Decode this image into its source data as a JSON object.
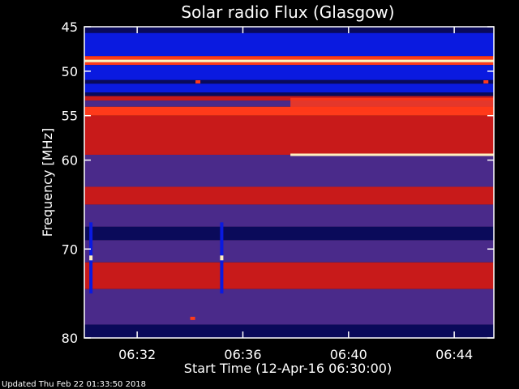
{
  "chart_data": {
    "type": "heatmap",
    "title": "Solar radio Flux (Glasgow)",
    "xlabel": "Start Time (12-Apr-16 06:30:00)",
    "ylabel": "Frequency [MHz]",
    "x_unit": "minutes after 06:30:00",
    "xlim": [
      0,
      15.5
    ],
    "ylim": [
      45,
      80
    ],
    "y_inverted": true,
    "x_ticks": [
      {
        "value": 2,
        "label": "06:32"
      },
      {
        "value": 6,
        "label": "06:36"
      },
      {
        "value": 10,
        "label": "06:40"
      },
      {
        "value": 14,
        "label": "06:44"
      }
    ],
    "y_ticks": [
      {
        "value": 45,
        "label": "45"
      },
      {
        "value": 50,
        "label": "50"
      },
      {
        "value": 55,
        "label": "55"
      },
      {
        "value": 60,
        "label": "60"
      },
      {
        "value": 70,
        "label": "70"
      },
      {
        "value": 80,
        "label": "80"
      }
    ],
    "colors": {
      "background": "#000000",
      "band_blue": "#0a1ae0",
      "band_dark_blue": "#0a0a5a",
      "band_purple": "#4a2a8a",
      "band_red": "#c81a1a",
      "band_bright_red": "#ff3a1a",
      "band_white": "#fff0c0",
      "border": "#ffffff"
    },
    "frequency_bands": [
      {
        "from": 45.0,
        "to": 45.7,
        "level": "dark_blue"
      },
      {
        "from": 45.7,
        "to": 48.3,
        "level": "blue"
      },
      {
        "from": 48.3,
        "to": 48.7,
        "level": "bright_red"
      },
      {
        "from": 48.7,
        "to": 49.0,
        "level": "white"
      },
      {
        "from": 49.0,
        "to": 49.3,
        "level": "bright_red"
      },
      {
        "from": 49.3,
        "to": 51.0,
        "level": "blue"
      },
      {
        "from": 51.0,
        "to": 51.4,
        "level": "dark_blue"
      },
      {
        "from": 51.4,
        "to": 52.4,
        "level": "blue"
      },
      {
        "from": 52.4,
        "to": 52.8,
        "level": "dark_blue"
      },
      {
        "from": 52.8,
        "to": 53.3,
        "level": "red"
      },
      {
        "from": 53.3,
        "to": 54.0,
        "level": "purple"
      },
      {
        "from": 54.0,
        "to": 55.0,
        "level": "bright_red"
      },
      {
        "from": 55.0,
        "to": 59.4,
        "level": "red"
      },
      {
        "from": 59.4,
        "to": 63.0,
        "level": "purple"
      },
      {
        "from": 63.0,
        "to": 65.0,
        "level": "red"
      },
      {
        "from": 65.0,
        "to": 67.5,
        "level": "purple"
      },
      {
        "from": 67.5,
        "to": 69.0,
        "level": "dark_blue"
      },
      {
        "from": 69.0,
        "to": 71.5,
        "level": "purple"
      },
      {
        "from": 71.5,
        "to": 74.5,
        "level": "red"
      },
      {
        "from": 74.5,
        "to": 78.5,
        "level": "purple"
      },
      {
        "from": 78.5,
        "to": 80.0,
        "level": "dark_blue"
      }
    ],
    "features": [
      {
        "kind": "bright_line",
        "freq": 59.4,
        "from_min": 7.8,
        "to_min": 15.5
      },
      {
        "kind": "bright_band",
        "freq_from": 53.0,
        "freq_to": 54.6,
        "from_min": 7.8,
        "to_min": 15.5
      },
      {
        "kind": "vertical_spike",
        "time_min": 0.25,
        "freq_from": 67.0,
        "freq_to": 75.0
      },
      {
        "kind": "vertical_spike",
        "time_min": 5.2,
        "freq_from": 67.0,
        "freq_to": 75.0
      },
      {
        "kind": "blob",
        "time_min": 4.3,
        "freq": 51.2
      },
      {
        "kind": "blob",
        "time_min": 15.2,
        "freq": 51.2
      },
      {
        "kind": "blob",
        "time_min": 4.1,
        "freq": 77.8
      }
    ]
  },
  "footer": {
    "updated_text": "Updated Thu Feb 22 01:33:50 2018"
  }
}
